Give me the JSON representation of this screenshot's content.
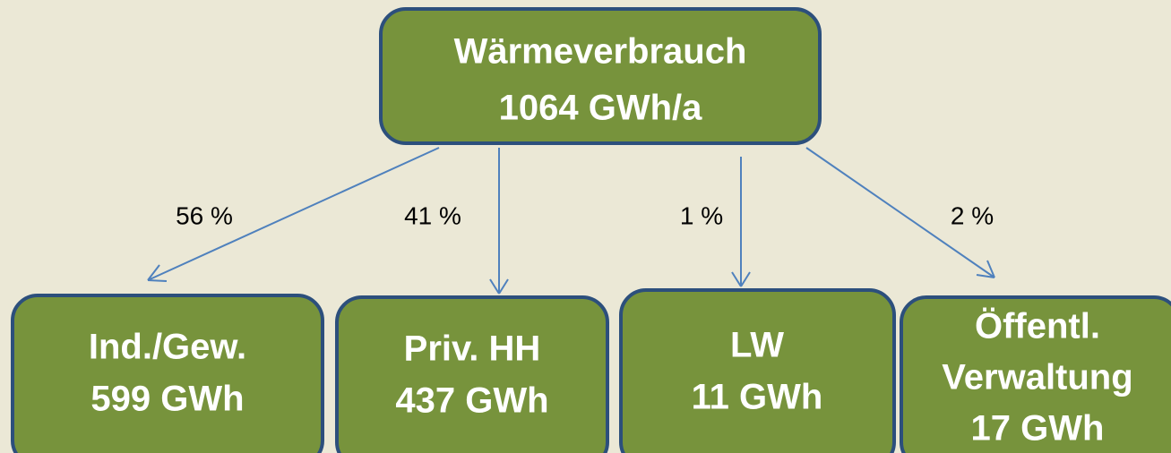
{
  "root": {
    "lines": [
      "Wärmeverbrauch",
      "1064 GWh/a"
    ]
  },
  "nodes": [
    {
      "lines": [
        "Ind./Gew.",
        "599 GWh"
      ],
      "edge_label": "56 %"
    },
    {
      "lines": [
        "Priv. HH",
        "437 GWh"
      ],
      "edge_label": "41 %"
    },
    {
      "lines": [
        "LW",
        "11 GWh"
      ],
      "edge_label": "1 %"
    },
    {
      "lines": [
        "Öffentl.",
        "Verwaltung",
        "17 GWh"
      ],
      "edge_label": "2 %"
    }
  ]
}
